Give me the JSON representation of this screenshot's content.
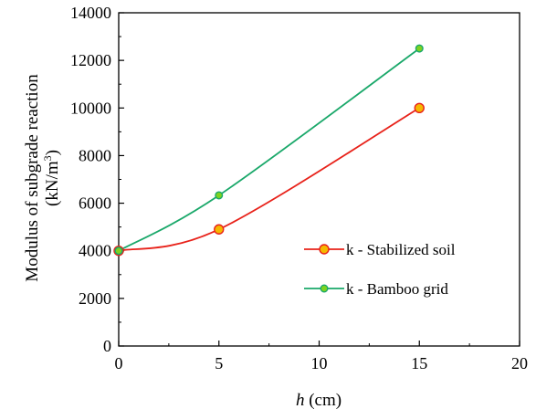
{
  "chart_data": {
    "type": "line",
    "x": [
      0,
      5,
      15
    ],
    "series": [
      {
        "name": "k - Stabilized soil",
        "values": [
          4000,
          4900,
          10000
        ],
        "line_color": "#e8221a",
        "marker_fill": "#f5b800",
        "marker_edge": "#e8221a"
      },
      {
        "name": "k - Bamboo grid",
        "values": [
          4000,
          6330,
          12500
        ],
        "line_color": "#1aa86a",
        "marker_fill": "#7ed321",
        "marker_edge": "#1aa86a"
      }
    ],
    "xlabel": {
      "italic": "h",
      "rest": " (cm)"
    },
    "ylabel": {
      "line1": "Modulus of subgrade reaction",
      "line2_pre": "(kN/m",
      "line2_sup": "3",
      "line2_post": ")"
    },
    "xlim": [
      0,
      20
    ],
    "ylim": [
      0,
      14000
    ],
    "x_ticks": [
      "0",
      "5",
      "10",
      "15",
      "20"
    ],
    "y_ticks": [
      "0",
      "2000",
      "4000",
      "6000",
      "8000",
      "10000",
      "12000",
      "14000"
    ],
    "grid": false,
    "legend_position": "right"
  }
}
